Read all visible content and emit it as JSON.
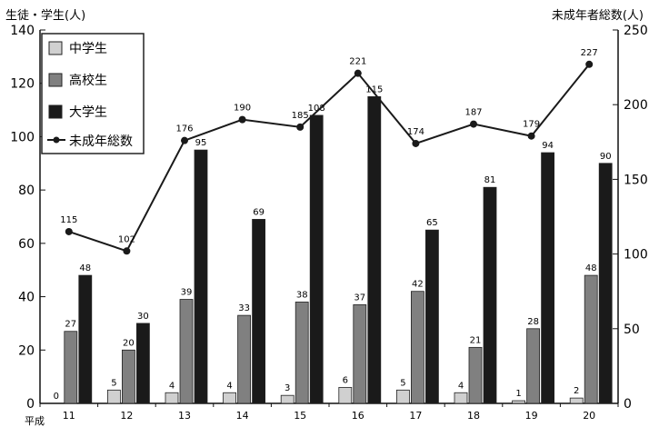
{
  "chart_data": {
    "type": "bar",
    "y_left_label": "生徒・学生(人)",
    "y_right_label": "未成年者総数(人)",
    "x_prefix": "平成",
    "categories": [
      "11",
      "12",
      "13",
      "14",
      "15",
      "16",
      "17",
      "18",
      "19",
      "20"
    ],
    "ylim_left": [
      0,
      140
    ],
    "yticks_left": [
      "0",
      "20",
      "40",
      "60",
      "80",
      "100",
      "120",
      "140"
    ],
    "ylim_right": [
      0,
      250
    ],
    "yticks_right": [
      "0",
      "50",
      "100",
      "150",
      "200",
      "250"
    ],
    "legend_placement": "top-left",
    "grid": false,
    "series": [
      {
        "name": "中学生",
        "kind": "bar",
        "axis": "left",
        "color": "#d0d0d0",
        "values": [
          0,
          5,
          4,
          4,
          3,
          6,
          5,
          4,
          1,
          2
        ]
      },
      {
        "name": "高校生",
        "kind": "bar",
        "axis": "left",
        "color": "#808080",
        "values": [
          27,
          20,
          39,
          33,
          38,
          37,
          42,
          21,
          28,
          48
        ]
      },
      {
        "name": "大学生",
        "kind": "bar",
        "axis": "left",
        "color": "#1a1a1a",
        "values": [
          48,
          30,
          95,
          69,
          108,
          115,
          65,
          81,
          94,
          90
        ]
      },
      {
        "name": "未成年総数",
        "kind": "line",
        "axis": "right",
        "color": "#1a1a1a",
        "values": [
          115,
          102,
          176,
          190,
          185,
          221,
          174,
          187,
          179,
          227
        ]
      }
    ]
  }
}
